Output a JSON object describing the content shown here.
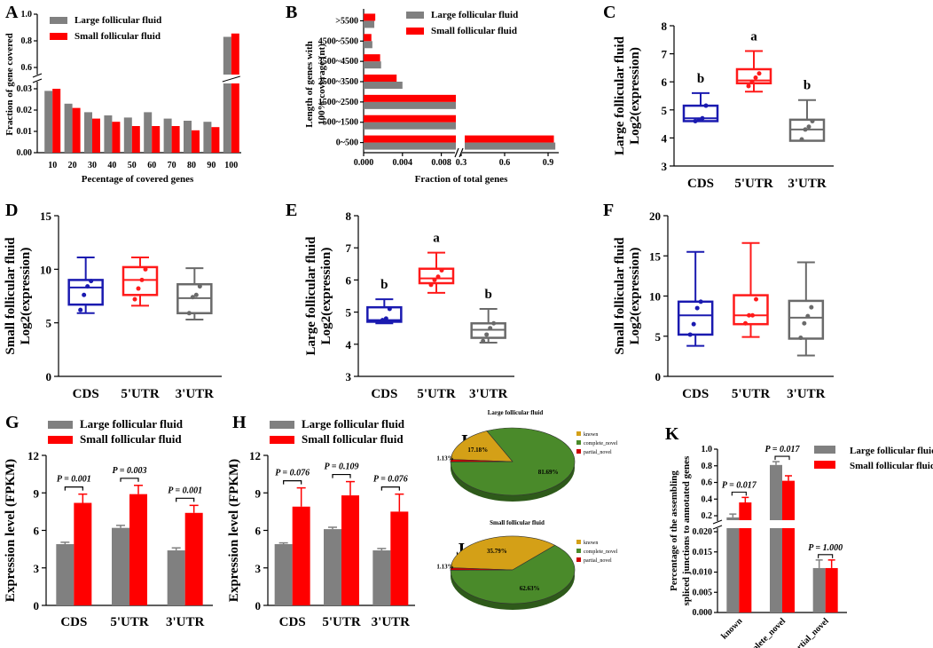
{
  "colors": {
    "large": "#808080",
    "small": "#ff0000",
    "blue": "#1a1ab0",
    "red": "#ff1a1a",
    "gray": "#6a6a6a",
    "known": "#d4a017",
    "complete_novel": "#4a8a2a",
    "partial_novel": "#cc0000"
  },
  "chart_data": [
    {
      "panel": "A",
      "type": "bar",
      "xlabel": "Pecentage of covered genes",
      "ylabel": "Fraction of gene covered",
      "categories": [
        "10",
        "20",
        "30",
        "40",
        "50",
        "60",
        "70",
        "80",
        "90",
        "100"
      ],
      "series": [
        {
          "name": "Large follicular fluid",
          "values": [
            0.029,
            0.023,
            0.019,
            0.0175,
            0.0165,
            0.019,
            0.016,
            0.015,
            0.0145,
            0.83
          ]
        },
        {
          "name": "Small follicular fluid",
          "values": [
            0.03,
            0.021,
            0.016,
            0.0145,
            0.0125,
            0.0125,
            0.0125,
            0.0105,
            0.012,
            0.855
          ]
        }
      ],
      "y_ticks_lower": [
        "0.00",
        "0.01",
        "0.02",
        "0.03"
      ],
      "y_ticks_upper": [
        "0.6",
        "0.8",
        "1.0"
      ]
    },
    {
      "panel": "B",
      "type": "bar",
      "orientation": "horizontal",
      "xlabel": "Fraction of total genes",
      "ylabel": "Length of genes with 100% coverage (nt)",
      "categories": [
        ">5500",
        "4500~5500",
        "3500~4500",
        "2500~3500",
        "1500~2500",
        "500~1500",
        "0~500"
      ],
      "series": [
        {
          "name": "Large follicular fluid",
          "values": [
            0.0011,
            0.0009,
            0.0018,
            0.004,
            0.0095,
            0.0095,
            0.95
          ]
        },
        {
          "name": "Small follicular fluid",
          "values": [
            0.0012,
            0.0008,
            0.0017,
            0.0034,
            0.0095,
            0.0095,
            0.94
          ]
        }
      ],
      "x_ticks_lower": [
        "0.000",
        "0.004",
        "0.008"
      ],
      "x_ticks_upper": [
        "0.3",
        "0.6",
        "0.9"
      ]
    },
    {
      "panel": "C",
      "type": "box",
      "ylabel": "Large follicular fluid Log2(expression)",
      "categories": [
        "CDS",
        "5'UTR",
        "3'UTR"
      ],
      "ylim": [
        3,
        8
      ],
      "yticks": [
        "3",
        "4",
        "5",
        "6",
        "7",
        "8"
      ],
      "boxes": [
        {
          "min": 4.6,
          "q1": 4.6,
          "median": 4.7,
          "q3": 5.15,
          "max": 5.6,
          "points": [
            4.6,
            4.65,
            4.7,
            5.15
          ],
          "letter": "b"
        },
        {
          "min": 5.65,
          "q1": 5.95,
          "median": 6.05,
          "q3": 6.45,
          "max": 7.1,
          "points": [
            5.85,
            6.0,
            6.15,
            6.3
          ],
          "letter": "a"
        },
        {
          "min": 3.9,
          "q1": 3.9,
          "median": 4.3,
          "q3": 4.65,
          "max": 5.35,
          "points": [
            3.95,
            4.3,
            4.4,
            4.6
          ],
          "letter": "b"
        }
      ]
    },
    {
      "panel": "D",
      "type": "box",
      "ylabel": "Small follicular fluid Log2(expression)",
      "categories": [
        "CDS",
        "5'UTR",
        "3'UTR"
      ],
      "ylim": [
        0,
        15
      ],
      "yticks": [
        "0",
        "5",
        "10",
        "15"
      ],
      "boxes": [
        {
          "min": 5.9,
          "q1": 6.7,
          "median": 8.3,
          "q3": 9.0,
          "max": 11.1,
          "points": [
            6.2,
            7.6,
            8.4,
            8.9
          ]
        },
        {
          "min": 6.6,
          "q1": 7.6,
          "median": 9.0,
          "q3": 10.2,
          "max": 11.1,
          "points": [
            7.2,
            8.2,
            9.0,
            10.0
          ]
        },
        {
          "min": 5.3,
          "q1": 5.9,
          "median": 7.3,
          "q3": 8.6,
          "max": 10.1,
          "points": [
            5.9,
            7.4,
            7.6,
            8.4
          ]
        }
      ]
    },
    {
      "panel": "E",
      "type": "box",
      "ylabel": "Large follicular fluid Log2(expression)",
      "categories": [
        "CDS",
        "5'UTR",
        "3'UTR"
      ],
      "ylim": [
        3,
        8
      ],
      "yticks": [
        "3",
        "4",
        "5",
        "6",
        "7",
        "8"
      ],
      "boxes": [
        {
          "min": 4.65,
          "q1": 4.7,
          "median": 4.75,
          "q3": 5.15,
          "max": 5.4,
          "points": [
            4.7,
            4.75,
            4.8,
            5.1
          ],
          "letter": "b"
        },
        {
          "min": 5.6,
          "q1": 5.9,
          "median": 6.05,
          "q3": 6.35,
          "max": 6.85,
          "points": [
            5.85,
            6.0,
            6.1,
            6.3
          ],
          "letter": "a"
        },
        {
          "min": 4.05,
          "q1": 4.2,
          "median": 4.45,
          "q3": 4.65,
          "max": 5.1,
          "points": [
            4.1,
            4.3,
            4.5,
            4.65
          ],
          "letter": "b"
        }
      ]
    },
    {
      "panel": "F",
      "type": "box",
      "ylabel": "Small follicular fluid Log2(expression)",
      "categories": [
        "CDS",
        "5'UTR",
        "3'UTR"
      ],
      "ylim": [
        0,
        20
      ],
      "yticks": [
        "0",
        "5",
        "10",
        "15",
        "20"
      ],
      "boxes": [
        {
          "min": 3.8,
          "q1": 5.2,
          "median": 7.6,
          "q3": 9.3,
          "max": 15.5,
          "points": [
            5.2,
            6.5,
            8.5,
            9.3
          ]
        },
        {
          "min": 4.9,
          "q1": 6.5,
          "median": 7.6,
          "q3": 10.1,
          "max": 16.6,
          "points": [
            6.6,
            7.6,
            7.6,
            9.6
          ]
        },
        {
          "min": 2.6,
          "q1": 4.7,
          "median": 7.3,
          "q3": 9.4,
          "max": 14.2,
          "points": [
            4.8,
            6.6,
            7.5,
            8.6
          ]
        }
      ]
    },
    {
      "panel": "G",
      "type": "bar",
      "ylabel": "Expression level (FPKM)",
      "categories": [
        "CDS",
        "5'UTR",
        "3'UTR"
      ],
      "ylim": [
        0,
        12
      ],
      "yticks": [
        "0",
        "3",
        "6",
        "9",
        "12"
      ],
      "series": [
        {
          "name": "Large follicular fluid",
          "values": [
            4.9,
            6.2,
            4.4
          ],
          "errors": [
            0.15,
            0.2,
            0.2
          ]
        },
        {
          "name": "Small follicular fluid",
          "values": [
            8.2,
            8.9,
            7.4
          ],
          "errors": [
            0.7,
            0.7,
            0.6
          ]
        }
      ],
      "pvalues": [
        "P = 0.001",
        "P = 0.003",
        "P = 0.001"
      ]
    },
    {
      "panel": "H",
      "type": "bar",
      "ylabel": "Expression level (FPKM)",
      "categories": [
        "CDS",
        "5'UTR",
        "3'UTR"
      ],
      "ylim": [
        0,
        12
      ],
      "yticks": [
        "0",
        "3",
        "6",
        "9",
        "12"
      ],
      "series": [
        {
          "name": "Large follicular fluid",
          "values": [
            4.9,
            6.1,
            4.4
          ],
          "errors": [
            0.1,
            0.15,
            0.15
          ]
        },
        {
          "name": "Small follicular fluid",
          "values": [
            7.9,
            8.8,
            7.5
          ],
          "errors": [
            1.5,
            1.1,
            1.4
          ]
        }
      ],
      "pvalues": [
        "P = 0.076",
        "P = 0.109",
        "P = 0.076"
      ]
    },
    {
      "panel": "I",
      "type": "pie",
      "title": "Large follicular fluid",
      "slices": [
        {
          "label": "known",
          "value": 17.18,
          "text": "17.18%"
        },
        {
          "label": "complete_novel",
          "value": 81.69,
          "text": "81.69%"
        },
        {
          "label": "partial_novel",
          "value": 1.13,
          "text": "1.13%"
        }
      ]
    },
    {
      "panel": "J",
      "type": "pie",
      "title": "Small follicular fluid",
      "slices": [
        {
          "label": "known",
          "value": 35.79,
          "text": "35.79%"
        },
        {
          "label": "complete_novel",
          "value": 62.63,
          "text": "62.63%"
        },
        {
          "label": "partial_novel",
          "value": 1.13,
          "text": "1.13%"
        }
      ]
    },
    {
      "panel": "K",
      "type": "bar",
      "ylabel": "Percentage of the assembling spliced junctions to annotated genes",
      "categories": [
        "known",
        "complete_novel",
        "partial_novel"
      ],
      "series": [
        {
          "name": "Large follicular fluid",
          "values": [
            0.18,
            0.81,
            0.011
          ],
          "errors": [
            0.04,
            0.04,
            0.002
          ]
        },
        {
          "name": "Small follicular fluid",
          "values": [
            0.36,
            0.62,
            0.011
          ],
          "errors": [
            0.06,
            0.06,
            0.002
          ]
        }
      ],
      "pvalues": [
        "P = 0.017",
        "P = 0.017",
        "P = 1.000"
      ],
      "y_ticks_upper": [
        "0.2",
        "0.4",
        "0.6",
        "0.8",
        "1.0"
      ],
      "y_ticks_lower": [
        "0.000",
        "0.005",
        "0.010",
        "0.015",
        "0.020"
      ]
    }
  ]
}
